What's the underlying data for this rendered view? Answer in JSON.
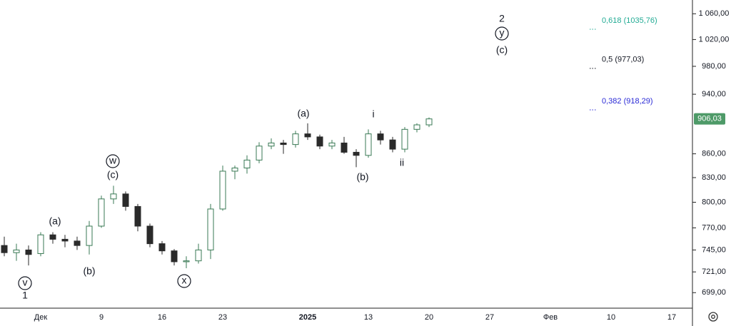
{
  "chart_data": {
    "type": "candlestick",
    "log_scale": true,
    "categories": [
      null,
      null,
      null,
      "Дек",
      null,
      null,
      null,
      null,
      "9",
      null,
      null,
      null,
      null,
      "16",
      null,
      null,
      null,
      null,
      "23",
      null,
      null,
      null,
      null,
      null,
      null,
      "2025",
      null,
      null,
      null,
      null,
      "13",
      null,
      null,
      null,
      null,
      "20",
      null,
      null,
      null,
      null,
      "27",
      null,
      null,
      null,
      null,
      "Фев",
      null,
      null,
      null,
      null,
      "10",
      null,
      null,
      null,
      null,
      "17",
      null
    ],
    "open": [
      750,
      742,
      745,
      741,
      762,
      757,
      755,
      750,
      772,
      804,
      810,
      795,
      772,
      752,
      744,
      732,
      733,
      745,
      792,
      838,
      842,
      852,
      870,
      874,
      872,
      886,
      882,
      870,
      874,
      862,
      858,
      886,
      878,
      866,
      892,
      898,
      null,
      null,
      null,
      null,
      null,
      null,
      null,
      null,
      null,
      null,
      null,
      null,
      null,
      null,
      null,
      null,
      null,
      null,
      null,
      null,
      null
    ],
    "high": [
      760,
      752,
      750,
      765,
      765,
      762,
      760,
      778,
      808,
      820,
      813,
      798,
      775,
      755,
      746,
      738,
      752,
      798,
      845,
      845,
      858,
      875,
      880,
      878,
      890,
      900,
      885,
      878,
      882,
      866,
      892,
      890,
      882,
      895,
      900,
      908,
      null,
      null,
      null,
      null,
      null,
      null,
      null,
      null,
      null,
      null,
      null,
      null,
      null,
      null,
      null,
      null,
      null,
      null,
      null,
      null,
      null
    ],
    "low": [
      738,
      733,
      728,
      738,
      752,
      748,
      745,
      740,
      770,
      798,
      790,
      766,
      748,
      740,
      728,
      725,
      730,
      735,
      790,
      828,
      835,
      848,
      866,
      860,
      868,
      878,
      866,
      866,
      860,
      843,
      855,
      872,
      862,
      862,
      888,
      895,
      null,
      null,
      null,
      null,
      null,
      null,
      null,
      null,
      null,
      null,
      null,
      null,
      null,
      null,
      null,
      null,
      null,
      null,
      null,
      null,
      null
    ],
    "close": [
      742,
      745,
      740,
      762,
      757,
      755,
      750,
      772,
      804,
      810,
      795,
      772,
      752,
      744,
      732,
      733,
      745,
      792,
      838,
      842,
      852,
      870,
      874,
      872,
      886,
      882,
      870,
      874,
      862,
      858,
      886,
      878,
      866,
      892,
      898,
      906.03,
      null,
      null,
      null,
      null,
      null,
      null,
      null,
      null,
      null,
      null,
      null,
      null,
      null,
      null,
      null,
      null,
      null,
      null,
      null,
      null,
      null
    ],
    "up_color": "#3a7a55",
    "down_color": "#2a2a2a",
    "ylim": [
      683,
      1082
    ],
    "yticks": [
      {
        "value": 1060,
        "label": "1 060,00"
      },
      {
        "value": 1020,
        "label": "1 020,00"
      },
      {
        "value": 980,
        "label": "980,00"
      },
      {
        "value": 940,
        "label": "940,00"
      },
      {
        "value": 860,
        "label": "860,00"
      },
      {
        "value": 830,
        "label": "830,00"
      },
      {
        "value": 800,
        "label": "800,00"
      },
      {
        "value": 770,
        "label": "770,00"
      },
      {
        "value": 745,
        "label": "745,00"
      },
      {
        "value": 721,
        "label": "721,00"
      },
      {
        "value": 699,
        "label": "699,00"
      }
    ],
    "last_price": {
      "value": 906.03,
      "label": "906,03",
      "color": "#4e9a68"
    },
    "fib_levels": [
      {
        "label": "0,618 (1035,76)",
        "value": 1035.76,
        "color": "#22ab94"
      },
      {
        "label": "0,5 (977,03)",
        "value": 977.03,
        "color": "#131722"
      },
      {
        "label": "0,382 (918,29)",
        "value": 918.29,
        "color": "#2929d6"
      }
    ],
    "annotations": [
      "v",
      "1",
      "(a)",
      "(b)",
      "w",
      "(c)",
      "x",
      "(a)",
      "(b)",
      "i",
      "ii",
      "2",
      "y",
      "(c)"
    ]
  }
}
